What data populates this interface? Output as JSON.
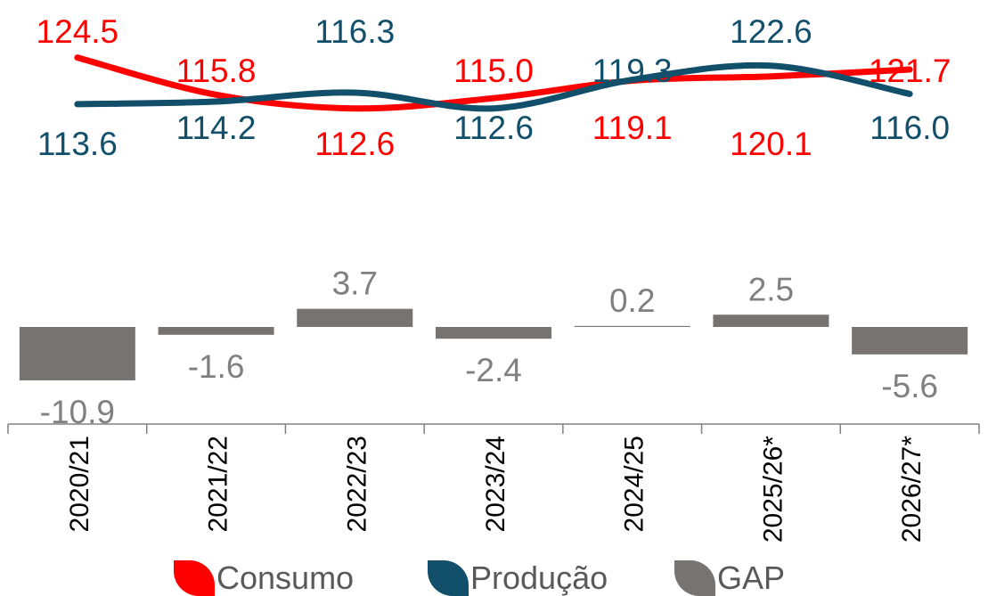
{
  "chart_data": {
    "type": "line+bar",
    "categories": [
      "2020/21",
      "2021/22",
      "2022/23",
      "2023/24",
      "2024/25",
      "2025/26*",
      "2026/27*"
    ],
    "series": [
      {
        "name": "Consumo",
        "type": "line",
        "color": "#ff0000",
        "values": [
          124.5,
          115.8,
          112.6,
          115.0,
          119.1,
          120.1,
          121.7
        ],
        "labels": [
          "124.5",
          "115.8",
          "112.6",
          "115.0",
          "119.1",
          "120.1",
          "121.7"
        ]
      },
      {
        "name": "Produção",
        "type": "line",
        "color": "#124f6b",
        "values": [
          113.6,
          114.2,
          116.3,
          112.6,
          119.3,
          122.6,
          116.0
        ],
        "labels": [
          "113.6",
          "114.2",
          "116.3",
          "112.6",
          "119.3",
          "122.6",
          "116.0"
        ]
      },
      {
        "name": "GAP",
        "type": "bar",
        "color": "#777370",
        "values": [
          -10.9,
          -1.6,
          3.7,
          -2.4,
          0.2,
          2.5,
          -5.6
        ],
        "labels": [
          "-10.9",
          "-1.6",
          "3.7",
          "-2.4",
          "0.2",
          "2.5",
          "-5.6"
        ]
      }
    ],
    "label_colors": {
      "Consumo": "#ff0000",
      "Produção": "#124f6b",
      "GAP": "#808080"
    },
    "axis_color": "#808080",
    "legend_position": "bottom",
    "x_tick_rotation": "vertical"
  },
  "legend": [
    {
      "label": "Consumo",
      "color": "#ff0000"
    },
    {
      "label": "Produção",
      "color": "#124f6b"
    },
    {
      "label": "GAP",
      "color": "#777370"
    }
  ]
}
